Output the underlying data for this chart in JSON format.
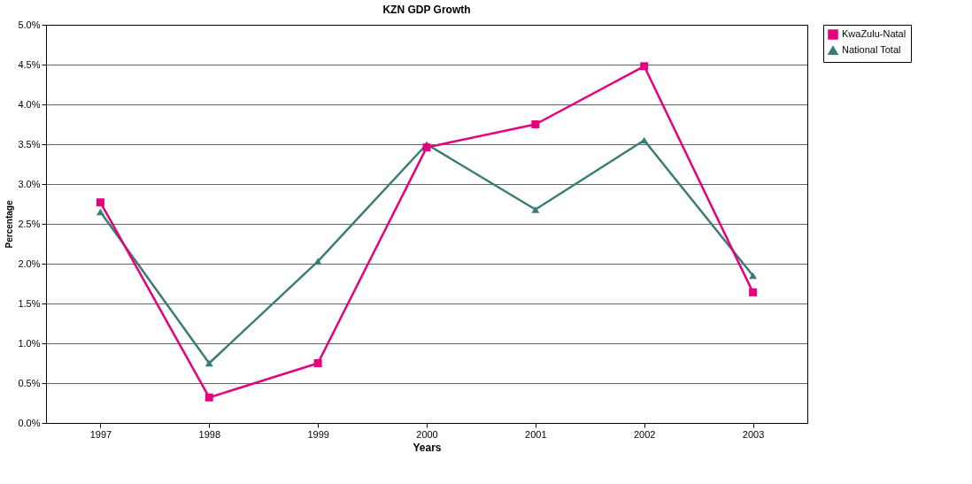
{
  "chart_data": {
    "type": "line",
    "title": "KZN GDP Growth",
    "xlabel": "Years",
    "ylabel": "Percentage",
    "categories": [
      "1997",
      "1998",
      "1999",
      "2000",
      "2001",
      "2002",
      "2003"
    ],
    "series": [
      {
        "name": "KwaZulu-Natal",
        "color": "#e6007e",
        "marker": "square",
        "values": [
          2.77,
          0.32,
          0.75,
          3.46,
          3.75,
          4.48,
          1.64
        ]
      },
      {
        "name": "National Total",
        "color": "#3a7d74",
        "marker": "triangle",
        "values": [
          2.65,
          0.75,
          2.03,
          3.5,
          2.68,
          3.55,
          1.85
        ]
      }
    ],
    "ylim": [
      0,
      5
    ],
    "yticks": [
      {
        "value": 0,
        "label": "0.0%"
      },
      {
        "value": 0.5,
        "label": "0.5%"
      },
      {
        "value": 1,
        "label": "1.0%"
      },
      {
        "value": 1.5,
        "label": "1.5%"
      },
      {
        "value": 2,
        "label": "2.0%"
      },
      {
        "value": 2.5,
        "label": "2.5%"
      },
      {
        "value": 3,
        "label": "3.0%"
      },
      {
        "value": 3.5,
        "label": "3.5%"
      },
      {
        "value": 4,
        "label": "4.0%"
      },
      {
        "value": 4.5,
        "label": "4.5%"
      },
      {
        "value": 5,
        "label": "5.0%"
      }
    ],
    "grid": "y",
    "legend": "right",
    "line_style": "solid"
  }
}
